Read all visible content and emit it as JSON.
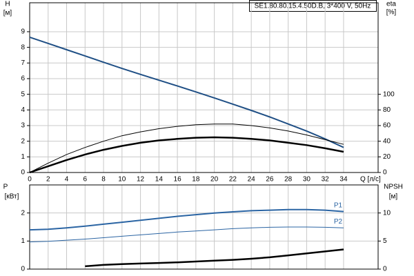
{
  "chart_data": [
    {
      "type": "line",
      "title": "SE1.80.80.15.4.50D.B, 3*400 V, 50Hz",
      "y_label": "H",
      "y_unit": "[м]",
      "y2_label": "eta",
      "y2_unit": "[%]",
      "x_label": "Q [л/с]",
      "x": [
        0,
        2,
        4,
        6,
        8,
        10,
        12,
        14,
        16,
        18,
        20,
        22,
        24,
        26,
        28,
        30,
        32,
        34
      ],
      "xlim": [
        0,
        37.74
      ],
      "xticks": [
        0,
        2,
        4,
        6,
        8,
        10,
        12,
        14,
        16,
        18,
        20,
        22,
        24,
        26,
        28,
        30,
        32,
        34
      ],
      "ylim": [
        0,
        10.85
      ],
      "yticks": [
        0,
        1,
        2,
        3,
        4,
        5,
        6,
        7,
        8,
        9
      ],
      "y2lim": [
        0,
        217
      ],
      "y2ticks": [
        0,
        20,
        40,
        60,
        80,
        100
      ],
      "grid": true,
      "series": [
        {
          "color": "#1f4f85",
          "line_width": 2,
          "values": [
            8.65,
            8.25,
            7.85,
            7.45,
            7.05,
            6.65,
            6.27,
            5.9,
            5.53,
            5.15,
            4.77,
            4.37,
            3.97,
            3.55,
            3.1,
            2.65,
            2.15,
            1.6
          ]
        },
        {
          "color": "#000000",
          "line_width": 1,
          "axis": "y2",
          "values": [
            0,
            12,
            23,
            32,
            40,
            47,
            52,
            56,
            59,
            61,
            62,
            62,
            60,
            57,
            53,
            48,
            42,
            36
          ]
        },
        {
          "color": "#000000",
          "line_width": 2.5,
          "axis": "y2",
          "values": [
            0,
            8,
            16,
            23,
            29,
            34,
            38,
            41,
            43,
            44.5,
            45,
            44.5,
            43,
            41,
            38,
            35,
            31,
            26.5
          ]
        }
      ]
    },
    {
      "type": "line",
      "y_label": "P",
      "y_unit": "[кВт]",
      "y2_label": "NPSH",
      "y2_unit": "[м]",
      "x": [
        0,
        2,
        4,
        6,
        8,
        10,
        12,
        14,
        16,
        18,
        20,
        22,
        24,
        26,
        28,
        30,
        32,
        34
      ],
      "xlim": [
        0,
        37.74
      ],
      "ylim": [
        0,
        3.0
      ],
      "yticks": [
        0,
        1,
        2
      ],
      "y2lim": [
        0,
        15
      ],
      "y2ticks": [
        0,
        5,
        10
      ],
      "grid": true,
      "series": [
        {
          "name": "P1",
          "color": "#2a64a3",
          "line_width": 2,
          "values": [
            1.4,
            1.42,
            1.47,
            1.53,
            1.6,
            1.67,
            1.74,
            1.81,
            1.88,
            1.94,
            2.0,
            2.04,
            2.08,
            2.1,
            2.12,
            2.12,
            2.1,
            2.05
          ]
        },
        {
          "name": "P2",
          "color": "#2a64a3",
          "line_width": 1,
          "values": [
            0.97,
            0.99,
            1.03,
            1.07,
            1.12,
            1.17,
            1.22,
            1.27,
            1.32,
            1.36,
            1.4,
            1.44,
            1.47,
            1.49,
            1.5,
            1.5,
            1.49,
            1.47
          ]
        },
        {
          "color": "#000000",
          "line_width": 2.5,
          "axis": "y2",
          "values": [
            null,
            null,
            null,
            0.5,
            0.75,
            0.9,
            1.0,
            1.1,
            1.2,
            1.35,
            1.5,
            1.65,
            1.85,
            2.1,
            2.45,
            2.8,
            3.15,
            3.5
          ]
        }
      ]
    }
  ]
}
